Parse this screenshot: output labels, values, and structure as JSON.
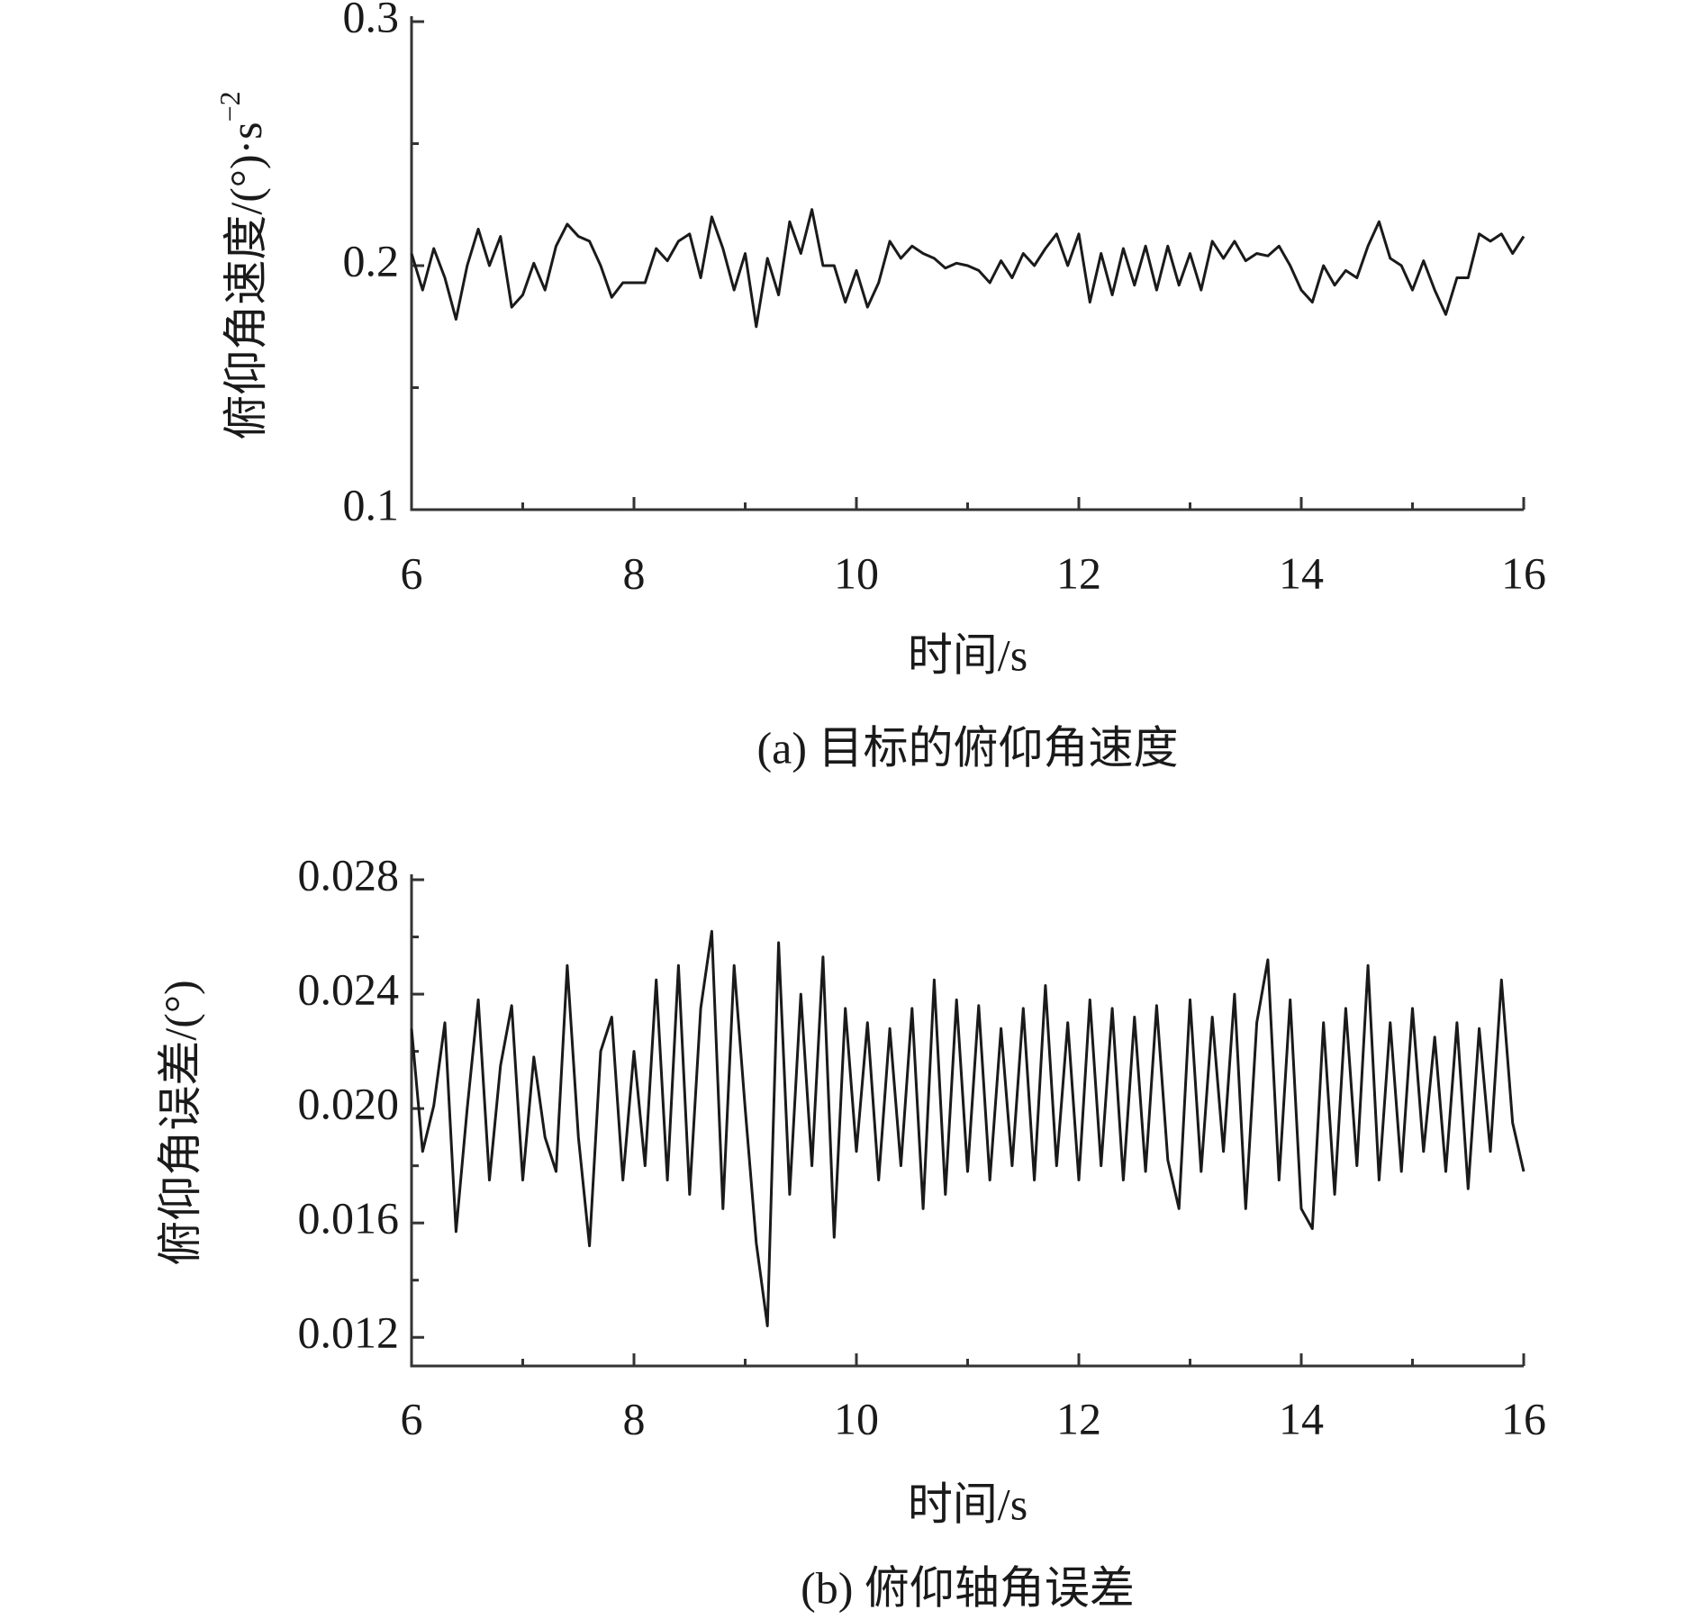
{
  "chart_data": [
    {
      "type": "line",
      "caption": "(a) 目标的俯仰角速度",
      "xlabel": "时间/s",
      "ylabel": "俯仰角速度/(°)·s",
      "ylabel_sup": "−2",
      "xlim": [
        6,
        16
      ],
      "xticks": [
        6,
        8,
        10,
        12,
        14,
        16
      ],
      "xminor_ticks": [
        7,
        9,
        11,
        13,
        15
      ],
      "ylim": [
        0.1,
        0.3
      ],
      "yticks": [
        0.1,
        0.2,
        0.3
      ],
      "yminor_ticks": [
        0.15,
        0.25
      ],
      "x": [
        6.0,
        6.1,
        6.2,
        6.3,
        6.4,
        6.5,
        6.6,
        6.7,
        6.8,
        6.9,
        7.0,
        7.1,
        7.2,
        7.3,
        7.4,
        7.5,
        7.6,
        7.7,
        7.8,
        7.9,
        8.0,
        8.1,
        8.2,
        8.3,
        8.4,
        8.5,
        8.6,
        8.7,
        8.8,
        8.9,
        9.0,
        9.1,
        9.2,
        9.3,
        9.4,
        9.5,
        9.6,
        9.7,
        9.8,
        9.9,
        10.0,
        10.1,
        10.2,
        10.3,
        10.4,
        10.5,
        10.6,
        10.7,
        10.8,
        10.9,
        11.0,
        11.1,
        11.2,
        11.3,
        11.4,
        11.5,
        11.6,
        11.7,
        11.8,
        11.9,
        12.0,
        12.1,
        12.2,
        12.3,
        12.4,
        12.5,
        12.6,
        12.7,
        12.8,
        12.9,
        13.0,
        13.1,
        13.2,
        13.3,
        13.4,
        13.5,
        13.6,
        13.7,
        13.8,
        13.9,
        14.0,
        14.1,
        14.2,
        14.3,
        14.4,
        14.5,
        14.6,
        14.7,
        14.8,
        14.9,
        15.0,
        15.1,
        15.2,
        15.3,
        15.4,
        15.5,
        15.6,
        15.7,
        15.8,
        15.9,
        16.0
      ],
      "series": [
        {
          "color": "#1a1a1a",
          "values": [
            0.205,
            0.19,
            0.207,
            0.195,
            0.178,
            0.2,
            0.215,
            0.2,
            0.212,
            0.183,
            0.188,
            0.201,
            0.19,
            0.208,
            0.217,
            0.212,
            0.21,
            0.2,
            0.187,
            0.193,
            0.193,
            0.193,
            0.207,
            0.202,
            0.21,
            0.213,
            0.195,
            0.22,
            0.207,
            0.19,
            0.205,
            0.175,
            0.203,
            0.188,
            0.218,
            0.205,
            0.223,
            0.2,
            0.2,
            0.185,
            0.198,
            0.183,
            0.193,
            0.21,
            0.203,
            0.208,
            0.205,
            0.203,
            0.199,
            0.201,
            0.2,
            0.198,
            0.193,
            0.202,
            0.195,
            0.205,
            0.2,
            0.207,
            0.213,
            0.2,
            0.213,
            0.185,
            0.205,
            0.188,
            0.207,
            0.192,
            0.208,
            0.19,
            0.208,
            0.192,
            0.205,
            0.19,
            0.21,
            0.203,
            0.21,
            0.202,
            0.205,
            0.204,
            0.208,
            0.2,
            0.19,
            0.185,
            0.2,
            0.192,
            0.198,
            0.195,
            0.208,
            0.218,
            0.203,
            0.2,
            0.19,
            0.202,
            0.19,
            0.18,
            0.195,
            0.195,
            0.213,
            0.21,
            0.213,
            0.205,
            0.212
          ]
        }
      ]
    },
    {
      "type": "line",
      "caption": "(b) 俯仰轴角误差",
      "xlabel": "时间/s",
      "ylabel": "俯仰角误差/(°)",
      "xlim": [
        6,
        16
      ],
      "xticks": [
        6,
        8,
        10,
        12,
        14,
        16
      ],
      "xminor_ticks": [
        7,
        9,
        11,
        13,
        15
      ],
      "ylim": [
        0.011,
        0.028
      ],
      "yticks": [
        {
          "value": 0.012,
          "label": "0.012"
        },
        {
          "value": 0.016,
          "label": "0.016"
        },
        {
          "value": 0.02,
          "label": "0.020"
        },
        {
          "value": 0.024,
          "label": "0.024"
        },
        {
          "value": 0.028,
          "label": "0.028"
        }
      ],
      "yminor_ticks": [
        0.014,
        0.018,
        0.022,
        0.026
      ],
      "x": [
        6.0,
        6.1,
        6.2,
        6.3,
        6.4,
        6.5,
        6.6,
        6.7,
        6.8,
        6.9,
        7.0,
        7.1,
        7.2,
        7.3,
        7.4,
        7.5,
        7.6,
        7.7,
        7.8,
        7.9,
        8.0,
        8.1,
        8.2,
        8.3,
        8.4,
        8.5,
        8.6,
        8.7,
        8.8,
        8.9,
        9.0,
        9.1,
        9.2,
        9.3,
        9.4,
        9.5,
        9.6,
        9.7,
        9.8,
        9.9,
        10.0,
        10.1,
        10.2,
        10.3,
        10.4,
        10.5,
        10.6,
        10.7,
        10.8,
        10.9,
        11.0,
        11.1,
        11.2,
        11.3,
        11.4,
        11.5,
        11.6,
        11.7,
        11.8,
        11.9,
        12.0,
        12.1,
        12.2,
        12.3,
        12.4,
        12.5,
        12.6,
        12.7,
        12.8,
        12.9,
        13.0,
        13.1,
        13.2,
        13.3,
        13.4,
        13.5,
        13.6,
        13.7,
        13.8,
        13.9,
        14.0,
        14.1,
        14.2,
        14.3,
        14.4,
        14.5,
        14.6,
        14.7,
        14.8,
        14.9,
        15.0,
        15.1,
        15.2,
        15.3,
        15.4,
        15.5,
        15.6,
        15.7,
        15.8,
        15.9,
        16.0
      ],
      "series": [
        {
          "color": "#1a1a1a",
          "values": [
            0.0228,
            0.0185,
            0.0201,
            0.023,
            0.0157,
            0.02,
            0.0238,
            0.0175,
            0.0215,
            0.0236,
            0.0175,
            0.0218,
            0.019,
            0.0178,
            0.025,
            0.019,
            0.0152,
            0.022,
            0.0232,
            0.0175,
            0.022,
            0.018,
            0.0245,
            0.0175,
            0.025,
            0.017,
            0.0235,
            0.0262,
            0.0165,
            0.025,
            0.02,
            0.0153,
            0.0124,
            0.0258,
            0.017,
            0.024,
            0.018,
            0.0253,
            0.0155,
            0.0235,
            0.0185,
            0.023,
            0.0175,
            0.0228,
            0.018,
            0.0235,
            0.0165,
            0.0245,
            0.017,
            0.0238,
            0.0178,
            0.0236,
            0.0175,
            0.0228,
            0.018,
            0.0235,
            0.0175,
            0.0243,
            0.018,
            0.023,
            0.0175,
            0.0238,
            0.018,
            0.0235,
            0.0175,
            0.0232,
            0.0178,
            0.0236,
            0.0182,
            0.0165,
            0.0238,
            0.0178,
            0.0232,
            0.0185,
            0.024,
            0.0165,
            0.023,
            0.0252,
            0.0175,
            0.0238,
            0.0165,
            0.0158,
            0.023,
            0.017,
            0.0235,
            0.018,
            0.025,
            0.0175,
            0.023,
            0.0178,
            0.0235,
            0.0185,
            0.0225,
            0.0178,
            0.023,
            0.0172,
            0.0228,
            0.0185,
            0.0245,
            0.0195,
            0.0178
          ]
        }
      ]
    }
  ]
}
